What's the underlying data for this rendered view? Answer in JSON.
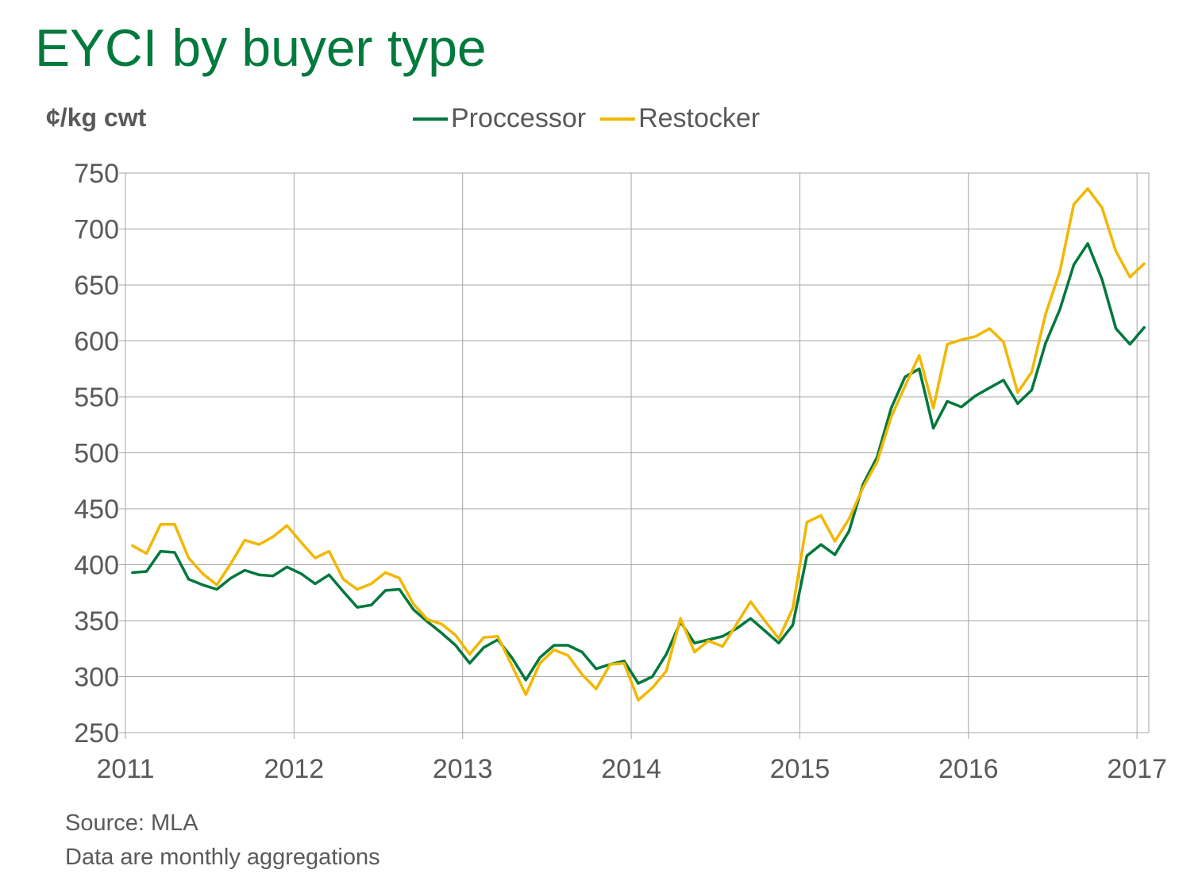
{
  "chart_data": {
    "type": "line",
    "title": "EYCI by buyer type",
    "ylabel": "¢/kg cwt",
    "ylim": [
      250,
      750
    ],
    "yticks": [
      250,
      300,
      350,
      400,
      450,
      500,
      550,
      600,
      650,
      700,
      750
    ],
    "xlim": [
      2011,
      2017.07
    ],
    "xticks": [
      2011,
      2012,
      2013,
      2014,
      2015,
      2016,
      2017
    ],
    "grid": true,
    "legend": "top",
    "x": [
      2011.042,
      2011.125,
      2011.208,
      2011.292,
      2011.375,
      2011.458,
      2011.542,
      2011.625,
      2011.708,
      2011.792,
      2011.875,
      2011.958,
      2012.042,
      2012.125,
      2012.208,
      2012.292,
      2012.375,
      2012.458,
      2012.542,
      2012.625,
      2012.708,
      2012.792,
      2012.875,
      2012.958,
      2013.042,
      2013.125,
      2013.208,
      2013.292,
      2013.375,
      2013.458,
      2013.542,
      2013.625,
      2013.708,
      2013.792,
      2013.875,
      2013.958,
      2014.042,
      2014.125,
      2014.208,
      2014.292,
      2014.375,
      2014.458,
      2014.542,
      2014.625,
      2014.708,
      2014.792,
      2014.875,
      2014.958,
      2015.042,
      2015.125,
      2015.208,
      2015.292,
      2015.375,
      2015.458,
      2015.542,
      2015.625,
      2015.708,
      2015.792,
      2015.875,
      2015.958,
      2016.042,
      2016.125,
      2016.208,
      2016.292,
      2016.375,
      2016.458,
      2016.542,
      2016.625,
      2016.708,
      2016.792,
      2016.875,
      2016.958,
      2017.042
    ],
    "series": [
      {
        "name": "Proccessor",
        "color": "#00783c",
        "values": [
          393,
          394,
          412,
          411,
          387,
          382,
          378,
          388,
          395,
          391,
          390,
          398,
          392,
          383,
          391,
          376,
          362,
          364,
          377,
          378,
          360,
          349,
          339,
          328,
          312,
          326,
          333,
          317,
          297,
          317,
          328,
          328,
          322,
          307,
          311,
          314,
          294,
          300,
          320,
          349,
          330,
          333,
          336,
          343,
          352,
          341,
          330,
          346,
          408,
          418,
          409,
          430,
          472,
          496,
          540,
          568,
          575,
          522,
          546,
          541,
          551,
          558,
          565,
          544,
          556,
          598,
          628,
          668,
          687,
          655,
          611,
          597,
          612
        ]
      },
      {
        "name": "Restocker",
        "color": "#f2b700",
        "values": [
          417,
          410,
          436,
          436,
          406,
          392,
          382,
          401,
          422,
          418,
          425,
          435,
          420,
          406,
          412,
          387,
          378,
          383,
          393,
          388,
          365,
          351,
          347,
          337,
          320,
          335,
          336,
          310,
          284,
          312,
          324,
          319,
          302,
          289,
          311,
          312,
          279,
          290,
          305,
          352,
          322,
          332,
          327,
          347,
          367,
          350,
          334,
          361,
          438,
          444,
          421,
          441,
          469,
          492,
          532,
          560,
          587,
          540,
          597,
          601,
          604,
          611,
          599,
          554,
          572,
          624,
          662,
          722,
          736,
          719,
          680,
          657,
          669
        ]
      }
    ],
    "annotations": [
      "Source: MLA",
      "Data are monthly aggregations"
    ]
  }
}
